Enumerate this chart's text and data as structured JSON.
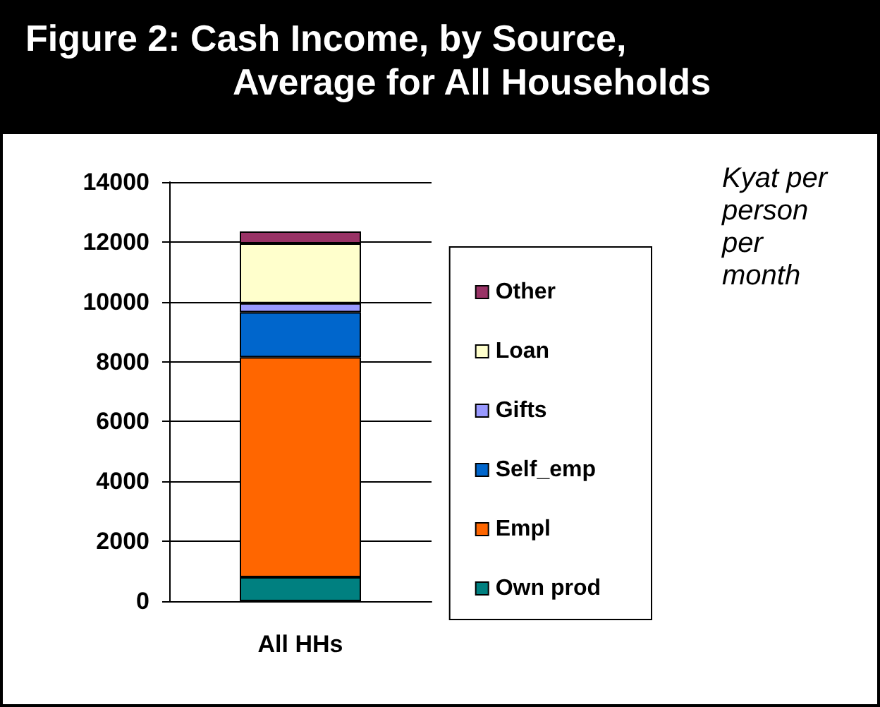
{
  "chart_data": {
    "type": "bar",
    "title": "Figure 2: Cash Income, by Source,\nAverage for All Households",
    "categories": [
      "All HHs"
    ],
    "stacked": true,
    "series": [
      {
        "name": "Own prod",
        "color": "#008080",
        "values": [
          800
        ]
      },
      {
        "name": "Empl",
        "color": "#ff6600",
        "values": [
          7350
        ]
      },
      {
        "name": "Self_emp",
        "color": "#0066cc",
        "values": [
          1500
        ]
      },
      {
        "name": "Gifts",
        "color": "#9999ff",
        "values": [
          300
        ]
      },
      {
        "name": "Loan",
        "color": "#ffffcc",
        "values": [
          2000
        ]
      },
      {
        "name": "Other",
        "color": "#993366",
        "values": [
          400
        ]
      }
    ],
    "ylim": [
      0,
      14000
    ],
    "yticks": [
      0,
      2000,
      4000,
      6000,
      8000,
      10000,
      12000,
      14000
    ],
    "grid": "y",
    "legend": "right",
    "annotations": [
      "Kyat per person per month"
    ]
  }
}
